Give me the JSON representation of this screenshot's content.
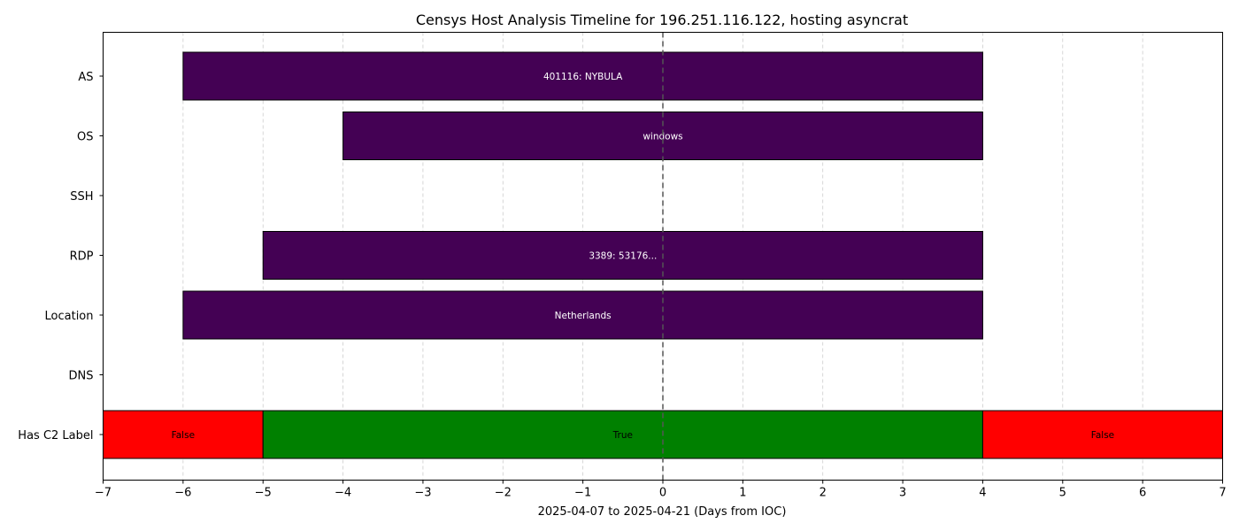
{
  "chart_data": {
    "type": "timeline",
    "title": "Censys Host Analysis Timeline for 196.251.116.122, hosting asyncrat",
    "xlabel": "2025-04-07 to 2025-04-21 (Days from IOC)",
    "ylabel": "",
    "xlim": [
      -7,
      7
    ],
    "xticks": [
      -7,
      -6,
      -5,
      -4,
      -3,
      -2,
      -1,
      0,
      1,
      2,
      3,
      4,
      5,
      6,
      7
    ],
    "xtick_labels": [
      "−7",
      "−6",
      "−5",
      "−4",
      "−3",
      "−2",
      "−1",
      "0",
      "1",
      "2",
      "3",
      "4",
      "5",
      "6",
      "7"
    ],
    "grid": "x-dashed",
    "reference_line_x": 0,
    "categories": [
      "AS",
      "OS",
      "SSH",
      "RDP",
      "Location",
      "DNS",
      "Has C2 Label"
    ],
    "segments": [
      {
        "category": "AS",
        "start": -6,
        "end": 4,
        "label": "401116: NYBULA",
        "color": "#440154",
        "label_color": "#ffffff"
      },
      {
        "category": "OS",
        "start": -4,
        "end": 4,
        "label": "windows",
        "color": "#440154",
        "label_color": "#ffffff"
      },
      {
        "category": "RDP",
        "start": -5,
        "end": 4,
        "label": "3389: 53176...",
        "color": "#440154",
        "label_color": "#ffffff"
      },
      {
        "category": "Location",
        "start": -6,
        "end": 4,
        "label": "Netherlands",
        "color": "#440154",
        "label_color": "#ffffff"
      },
      {
        "category": "Has C2 Label",
        "start": -7,
        "end": -5,
        "label": "False",
        "color": "#ff0000",
        "label_color": "#000000"
      },
      {
        "category": "Has C2 Label",
        "start": -5,
        "end": 4,
        "label": "True",
        "color": "#008000",
        "label_color": "#000000"
      },
      {
        "category": "Has C2 Label",
        "start": 4,
        "end": 7,
        "label": "False",
        "color": "#ff0000",
        "label_color": "#000000"
      }
    ]
  }
}
